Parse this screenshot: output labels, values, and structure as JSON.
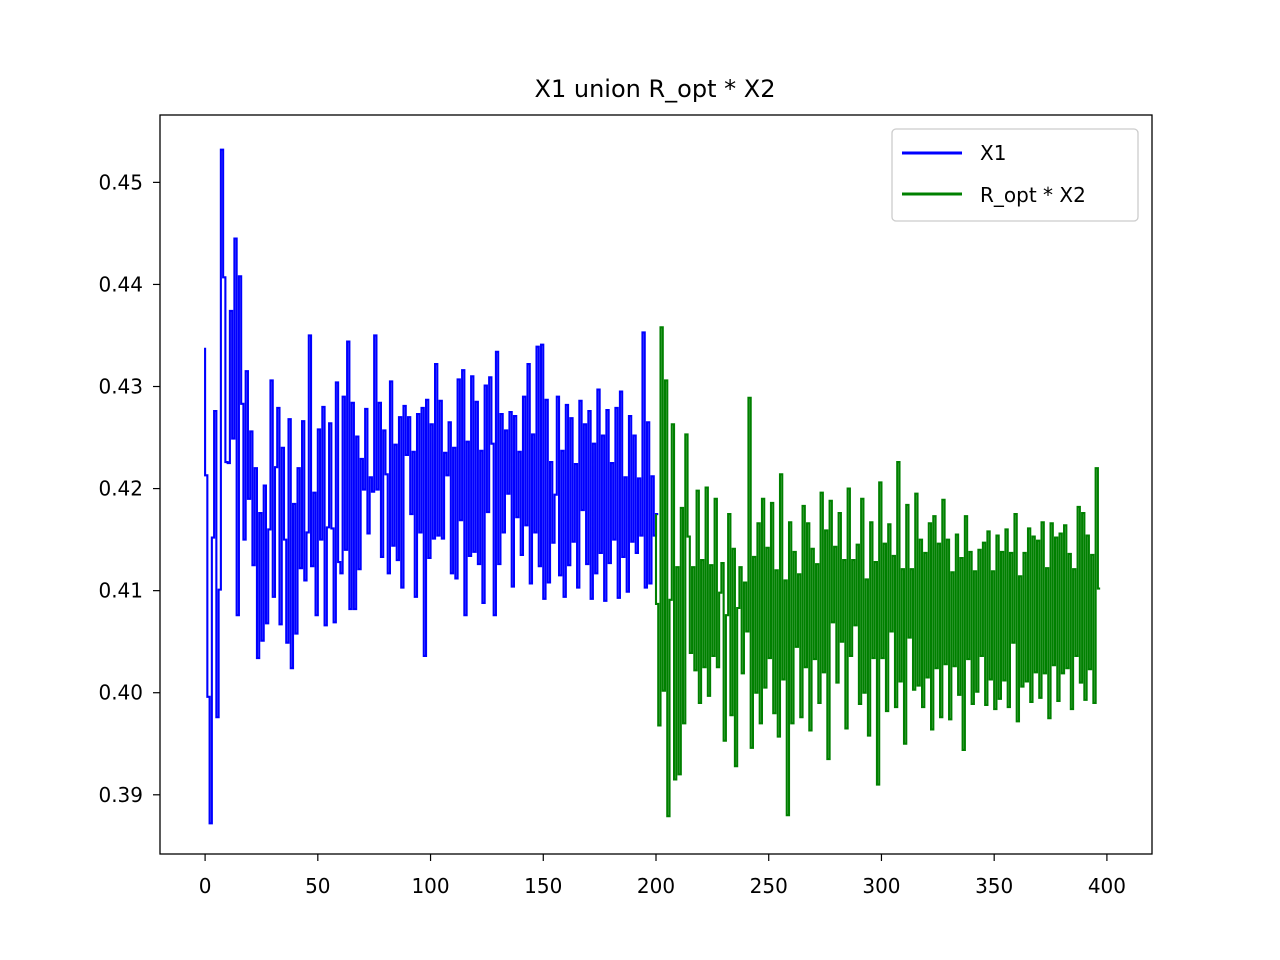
{
  "chart_data": {
    "type": "line",
    "title": "X1 union R_opt * X2",
    "xlabel": "",
    "ylabel": "",
    "xlim": [
      -20,
      420
    ],
    "ylim": [
      0.3842,
      0.4566
    ],
    "xticks": [
      0,
      50,
      100,
      150,
      200,
      250,
      300,
      350,
      400
    ],
    "xtick_labels": [
      "0",
      "50",
      "100",
      "150",
      "200",
      "250",
      "300",
      "350",
      "400"
    ],
    "yticks": [
      0.39,
      0.4,
      0.41,
      0.42,
      0.43,
      0.44,
      0.45
    ],
    "ytick_labels": [
      "0.39",
      "0.40",
      "0.41",
      "0.42",
      "0.43",
      "0.44",
      "0.45"
    ],
    "grid": false,
    "legend_position": "top-right",
    "step_style": "steps-pre",
    "series": [
      {
        "name": "X1",
        "color": "#0000ff",
        "x_start": 0,
        "y": [
          0.4338,
          0.4213,
          0.3996,
          0.3872,
          0.4152,
          0.4276,
          0.3976,
          0.4101,
          0.4532,
          0.4407,
          0.4226,
          0.4225,
          0.4374,
          0.4249,
          0.4445,
          0.4076,
          0.4408,
          0.4283,
          0.415,
          0.4315,
          0.419,
          0.4256,
          0.4125,
          0.422,
          0.4034,
          0.4176,
          0.4051,
          0.4203,
          0.4068,
          0.416,
          0.4306,
          0.4094,
          0.4221,
          0.4279,
          0.4067,
          0.424,
          0.415,
          0.4049,
          0.4268,
          0.4024,
          0.4185,
          0.4058,
          0.422,
          0.4122,
          0.4266,
          0.411,
          0.4157,
          0.435,
          0.4124,
          0.4196,
          0.4076,
          0.4258,
          0.415,
          0.428,
          0.4066,
          0.4162,
          0.4264,
          0.4161,
          0.4069,
          0.4304,
          0.4128,
          0.4117,
          0.429,
          0.414,
          0.4344,
          0.4082,
          0.4284,
          0.4082,
          0.4251,
          0.4121,
          0.4229,
          0.4199,
          0.4278,
          0.4156,
          0.4211,
          0.4197,
          0.435,
          0.4199,
          0.4284,
          0.4133,
          0.4257,
          0.4214,
          0.4117,
          0.4305,
          0.4144,
          0.4243,
          0.413,
          0.427,
          0.4103,
          0.4281,
          0.4233,
          0.427,
          0.4175,
          0.4236,
          0.4094,
          0.4273,
          0.4157,
          0.4279,
          0.4036,
          0.4287,
          0.4132,
          0.4263,
          0.4151,
          0.4322,
          0.4154,
          0.4286,
          0.4151,
          0.4235,
          0.4213,
          0.4265,
          0.4117,
          0.424,
          0.4112,
          0.4307,
          0.4169,
          0.4316,
          0.4076,
          0.4246,
          0.4134,
          0.431,
          0.4138,
          0.4285,
          0.4126,
          0.4237,
          0.4088,
          0.4301,
          0.4177,
          0.4309,
          0.4244,
          0.4076,
          0.4334,
          0.4126,
          0.4273,
          0.4157,
          0.4257,
          0.4195,
          0.4275,
          0.4104,
          0.4271,
          0.4172,
          0.4236,
          0.4135,
          0.429,
          0.4164,
          0.4322,
          0.4107,
          0.4253,
          0.4157,
          0.4339,
          0.4124,
          0.4341,
          0.4092,
          0.4287,
          0.4108,
          0.4226,
          0.4147,
          0.4194,
          0.429,
          0.4115,
          0.4237,
          0.4094,
          0.4282,
          0.4125,
          0.4269,
          0.4148,
          0.4224,
          0.4103,
          0.4286,
          0.4179,
          0.4263,
          0.4126,
          0.4276,
          0.4092,
          0.4244,
          0.4117,
          0.4297,
          0.4137,
          0.4252,
          0.409,
          0.4277,
          0.4127,
          0.4225,
          0.415,
          0.4279,
          0.4093,
          0.4295,
          0.4133,
          0.4211,
          0.4099,
          0.4271,
          0.4148,
          0.4252,
          0.4137,
          0.421,
          0.4154,
          0.4353,
          0.4103,
          0.4265,
          0.4107,
          0.4212,
          0.4154,
          0.4175
        ]
      },
      {
        "name": "R_opt * X2",
        "color": "#008000",
        "x_start": 200,
        "y": [
          0.4175,
          0.4087,
          0.3968,
          0.4358,
          0.4002,
          0.4306,
          0.3879,
          0.4091,
          0.4263,
          0.3915,
          0.4123,
          0.392,
          0.4181,
          0.397,
          0.4253,
          0.4153,
          0.4039,
          0.4123,
          0.4022,
          0.4198,
          0.399,
          0.413,
          0.4025,
          0.4201,
          0.3997,
          0.4125,
          0.4036,
          0.419,
          0.4025,
          0.4098,
          0.4127,
          0.3953,
          0.4076,
          0.4175,
          0.3978,
          0.4141,
          0.3928,
          0.4083,
          0.4123,
          0.4019,
          0.4108,
          0.406,
          0.4289,
          0.3946,
          0.4133,
          0.4,
          0.4166,
          0.397,
          0.419,
          0.4005,
          0.4142,
          0.4034,
          0.4186,
          0.398,
          0.412,
          0.3957,
          0.4214,
          0.4013,
          0.411,
          0.388,
          0.4167,
          0.397,
          0.4138,
          0.4045,
          0.4116,
          0.3976,
          0.4183,
          0.4025,
          0.4166,
          0.3963,
          0.4141,
          0.4033,
          0.4126,
          0.399,
          0.4196,
          0.402,
          0.4159,
          0.3935,
          0.4188,
          0.4069,
          0.4143,
          0.401,
          0.4176,
          0.405,
          0.413,
          0.3965,
          0.42,
          0.4036,
          0.413,
          0.4066,
          0.4145,
          0.3989,
          0.419,
          0.4,
          0.4111,
          0.3958,
          0.4167,
          0.4034,
          0.4128,
          0.391,
          0.4206,
          0.4034,
          0.4146,
          0.3982,
          0.4165,
          0.406,
          0.4134,
          0.3986,
          0.4226,
          0.4011,
          0.4121,
          0.395,
          0.4184,
          0.4054,
          0.4121,
          0.4003,
          0.4195,
          0.4007,
          0.415,
          0.3986,
          0.4137,
          0.4015,
          0.4166,
          0.3964,
          0.4173,
          0.4024,
          0.4146,
          0.3976,
          0.4189,
          0.4028,
          0.415,
          0.3974,
          0.4118,
          0.4026,
          0.4155,
          0.3998,
          0.4132,
          0.3944,
          0.4173,
          0.4033,
          0.4138,
          0.3989,
          0.4119,
          0.4001,
          0.414,
          0.4036,
          0.4147,
          0.3988,
          0.4158,
          0.4013,
          0.4119,
          0.3984,
          0.4154,
          0.3994,
          0.4138,
          0.4012,
          0.416,
          0.3986,
          0.4137,
          0.4049,
          0.4175,
          0.3972,
          0.4114,
          0.4006,
          0.4137,
          0.4011,
          0.4161,
          0.3991,
          0.4153,
          0.402,
          0.4149,
          0.3995,
          0.4167,
          0.4019,
          0.4122,
          0.3975,
          0.4166,
          0.4027,
          0.4152,
          0.3992,
          0.4156,
          0.4019,
          0.4164,
          0.4024,
          0.4136,
          0.3984,
          0.4121,
          0.4036,
          0.4182,
          0.401,
          0.4176,
          0.3993,
          0.4154,
          0.4023,
          0.4135,
          0.399,
          0.422,
          0.4102
        ]
      }
    ]
  }
}
